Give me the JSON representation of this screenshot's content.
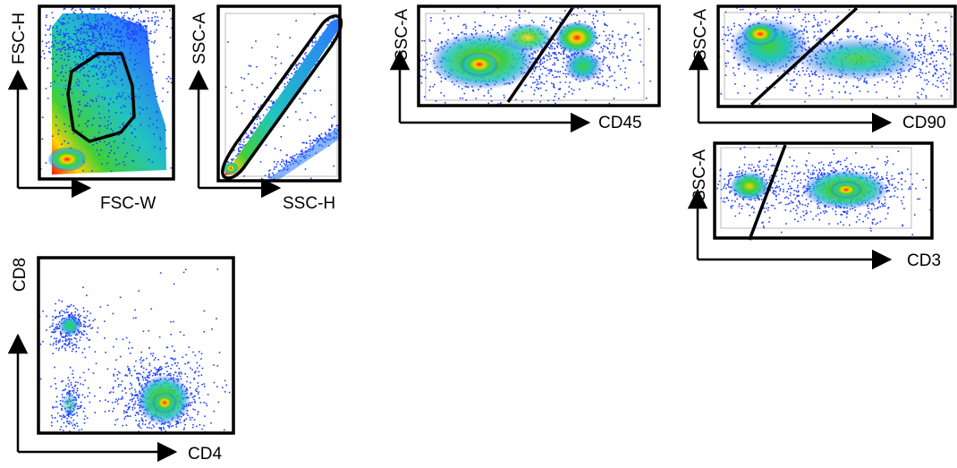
{
  "figure": {
    "description_free": true
  },
  "chart_data": [
    {
      "type": "scatter",
      "xlabel": "FSC-W",
      "ylabel": "FSC-H",
      "gate": "polygon"
    },
    {
      "type": "scatter",
      "xlabel": "SSC-H",
      "ylabel": "SSC-A",
      "gate": "ellipse"
    },
    {
      "type": "scatter",
      "xlabel": "CD45",
      "ylabel": "SSC-A",
      "gate": "line"
    },
    {
      "type": "scatter",
      "xlabel": "CD90",
      "ylabel": "SSC-A",
      "gate": "line"
    },
    {
      "type": "scatter",
      "xlabel": "CD3",
      "ylabel": "SSC-A",
      "gate": "line"
    },
    {
      "type": "scatter",
      "xlabel": "CD4",
      "ylabel": "CD8",
      "gate": "none"
    }
  ],
  "colors": {
    "low": "#1f3fff",
    "mid": "#22c4c0",
    "midhigh": "#3fcf3a",
    "high": "#ffd400",
    "peak": "#ff1a00",
    "frame": "#000000"
  }
}
